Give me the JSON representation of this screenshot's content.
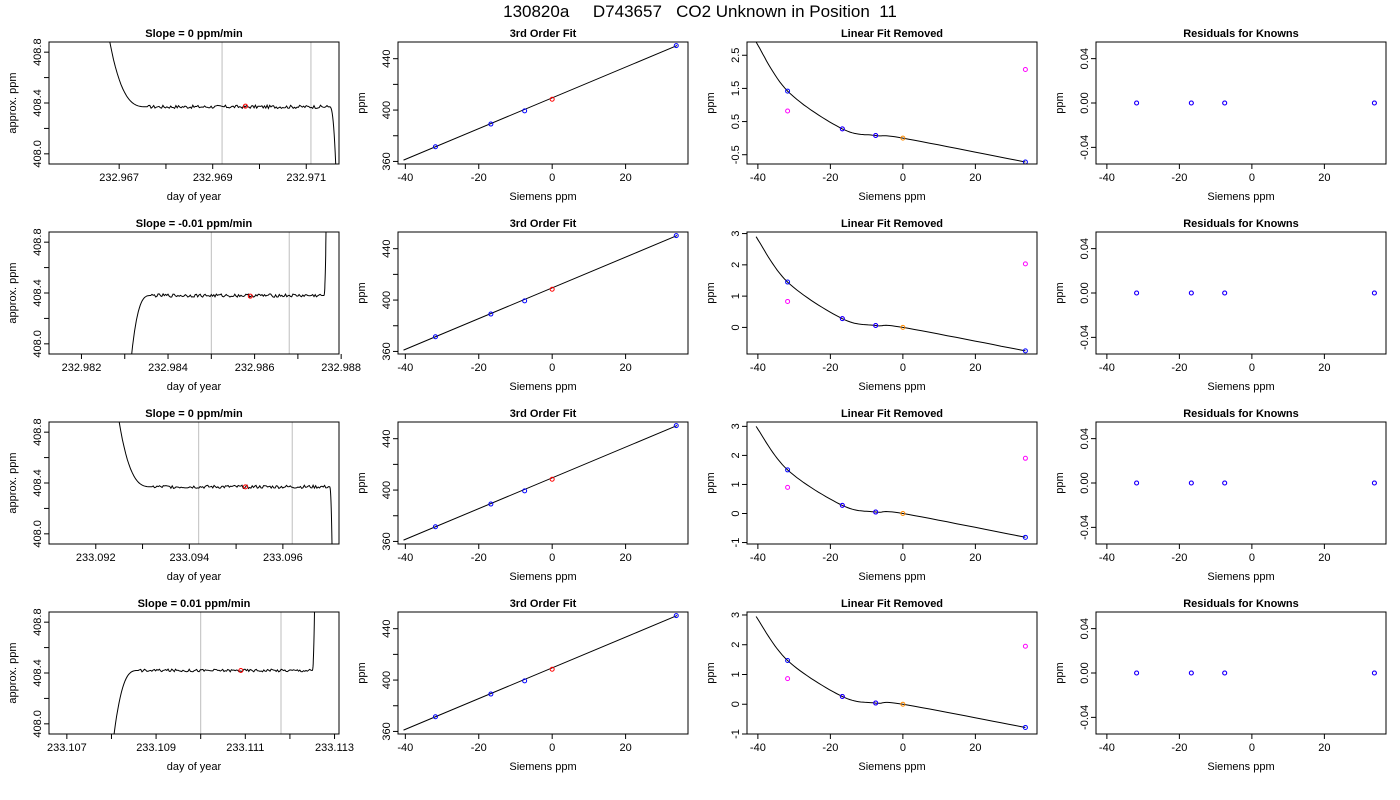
{
  "page_title": "130820a     D743657   CO2 Unknown in Position  11",
  "colors": {
    "axis": "#000000",
    "trace": "#000000",
    "vline": "#bebebe",
    "red": "#ff0000",
    "blue": "#0000ff",
    "magenta": "#ff00ff",
    "orange": "#ff8c00"
  },
  "chart_data": [
    {
      "type": "line",
      "row": 0,
      "col": 0,
      "title": "Slope =  0  ppm/min",
      "xlabel": "day of year",
      "ylabel": "approx. ppm",
      "xlim": [
        232.9655,
        232.9717
      ],
      "ylim": [
        407.92,
        408.88
      ],
      "xticks": [
        232.967,
        232.968,
        232.969,
        232.97,
        232.971
      ],
      "xticklabels": [
        "232.967",
        "",
        "232.969",
        "",
        "232.971"
      ],
      "yticks": [
        408.0,
        408.2,
        408.4,
        408.6,
        408.8
      ],
      "yticklabels": [
        "408.0",
        "",
        "408.4",
        "",
        "408.8"
      ],
      "vlines": [
        232.9692,
        232.9711
      ],
      "trace_level": 408.37,
      "trace_noise": 0.013,
      "trace_start": [
        232.9668,
        408.88
      ],
      "flat_start": 232.9676,
      "flat_end": 232.9715,
      "trace_end": [
        232.97163,
        407.92
      ],
      "red_point": [
        232.9697,
        408.375
      ]
    },
    {
      "type": "scatter",
      "row": 0,
      "col": 1,
      "title": "3rd Order Fit",
      "xlabel": "Siemens ppm",
      "ylabel": "ppm",
      "xlim": [
        -42,
        37
      ],
      "ylim": [
        358,
        453
      ],
      "xticks": [
        -40,
        -20,
        0,
        20
      ],
      "xticklabels": [
        "-40",
        "-20",
        "0",
        "20"
      ],
      "yticks": [
        360,
        380,
        400,
        420,
        440
      ],
      "yticklabels": [
        "360",
        "",
        "400",
        "",
        "440"
      ],
      "fit_line": [
        [
          -40.5,
          361.0
        ],
        [
          34.0,
          450.2
        ]
      ],
      "blue_points": [
        [
          -31.8,
          371.4
        ],
        [
          -16.7,
          389.1
        ],
        [
          -7.5,
          399.4
        ],
        [
          33.8,
          450.2
        ]
      ],
      "red_points": [
        [
          0,
          408.4
        ]
      ]
    },
    {
      "type": "scatter",
      "row": 0,
      "col": 2,
      "title": "Linear Fit Removed",
      "xlabel": "Siemens ppm",
      "ylabel": "ppm",
      "xlim": [
        -43,
        37
      ],
      "ylim": [
        -0.78,
        2.9
      ],
      "xticks": [
        -40,
        -20,
        0,
        20
      ],
      "xticklabels": [
        "-40",
        "-20",
        "0",
        "20"
      ],
      "yticks": [
        -0.5,
        0.5,
        1.5,
        2.5
      ],
      "yticklabels": [
        "-0.5",
        "0.5",
        "1.5",
        "2.5"
      ],
      "curve_points": [
        [
          -40.5,
          2.9
        ],
        [
          -31.8,
          1.42
        ],
        [
          -16.7,
          0.28
        ],
        [
          -7.5,
          0.08
        ],
        [
          0,
          0.0
        ],
        [
          33.8,
          -0.72
        ]
      ],
      "blue_points": [
        [
          -31.8,
          1.42
        ],
        [
          -16.7,
          0.28
        ],
        [
          -7.5,
          0.08
        ],
        [
          33.8,
          -0.72
        ]
      ],
      "magenta_points": [
        [
          -31.8,
          0.82
        ],
        [
          -16.7,
          0.28
        ],
        [
          -7.5,
          0.08
        ],
        [
          33.8,
          2.07
        ]
      ],
      "orange_points": [
        [
          0,
          0.0
        ]
      ]
    },
    {
      "type": "scatter",
      "row": 0,
      "col": 3,
      "title": "Residuals for Knowns",
      "xlabel": "Siemens ppm",
      "ylabel": "ppm",
      "xlim": [
        -43,
        37
      ],
      "ylim": [
        -0.055,
        0.055
      ],
      "xticks": [
        -40,
        -20,
        0,
        20
      ],
      "xticklabels": [
        "-40",
        "-20",
        "0",
        "20"
      ],
      "yticks": [
        -0.04,
        0.0,
        0.04
      ],
      "yticklabels": [
        "-0.04",
        "0.00",
        "0.04"
      ],
      "blue_points": [
        [
          -31.8,
          0
        ],
        [
          -16.7,
          0
        ],
        [
          -7.5,
          0
        ],
        [
          33.8,
          0
        ]
      ],
      "magenta_points": [
        [
          -31.8,
          0
        ],
        [
          -16.7,
          0
        ],
        [
          -7.5,
          0
        ],
        [
          33.8,
          0
        ]
      ]
    },
    {
      "type": "line",
      "row": 1,
      "col": 0,
      "title": "Slope =  -0.01  ppm/min",
      "xlabel": "day of year",
      "ylabel": "approx. ppm",
      "xlim": [
        232.98125,
        232.98795
      ],
      "ylim": [
        407.92,
        408.88
      ],
      "xticks": [
        232.982,
        232.983,
        232.984,
        232.985,
        232.986,
        232.987,
        232.988
      ],
      "xticklabels": [
        "232.982",
        "",
        "232.984",
        "",
        "232.986",
        "",
        "232.988"
      ],
      "yticks": [
        408.0,
        408.2,
        408.4,
        408.6,
        408.8
      ],
      "yticklabels": [
        "408.0",
        "",
        "408.4",
        "",
        "408.8"
      ],
      "vlines": [
        232.985,
        232.9868
      ],
      "trace_level": 408.38,
      "trace_noise": 0.013,
      "trace_start": [
        232.98316,
        407.92
      ],
      "flat_start": 232.9836,
      "flat_end": 232.9876,
      "trace_end": [
        232.98765,
        408.88
      ],
      "red_point": [
        232.9859,
        408.375
      ]
    },
    {
      "type": "scatter",
      "row": 1,
      "col": 1,
      "title": "3rd Order Fit",
      "xlabel": "Siemens ppm",
      "ylabel": "ppm",
      "xlim": [
        -42,
        37
      ],
      "ylim": [
        358,
        453
      ],
      "xticks": [
        -40,
        -20,
        0,
        20
      ],
      "xticklabels": [
        "-40",
        "-20",
        "0",
        "20"
      ],
      "yticks": [
        360,
        380,
        400,
        420,
        440
      ],
      "yticklabels": [
        "360",
        "",
        "400",
        "",
        "440"
      ],
      "fit_line": [
        [
          -40.5,
          361.0
        ],
        [
          34.0,
          450.2
        ]
      ],
      "blue_points": [
        [
          -31.8,
          371.4
        ],
        [
          -16.7,
          389.1
        ],
        [
          -7.5,
          399.4
        ],
        [
          33.8,
          450.2
        ]
      ],
      "red_points": [
        [
          0,
          408.4
        ]
      ]
    },
    {
      "type": "scatter",
      "row": 1,
      "col": 2,
      "title": "Linear Fit Removed",
      "xlabel": "Siemens ppm",
      "ylabel": "ppm",
      "xlim": [
        -43,
        37
      ],
      "ylim": [
        -0.85,
        3.05
      ],
      "xticks": [
        -40,
        -20,
        0,
        20
      ],
      "xticklabels": [
        "-40",
        "-20",
        "0",
        "20"
      ],
      "yticks": [
        0,
        1,
        2,
        3
      ],
      "yticklabels": [
        "0",
        "1",
        "2",
        "3"
      ],
      "curve_points": [
        [
          -40.5,
          2.9
        ],
        [
          -31.8,
          1.45
        ],
        [
          -16.7,
          0.28
        ],
        [
          -7.5,
          0.06
        ],
        [
          0,
          0.0
        ],
        [
          33.8,
          -0.75
        ]
      ],
      "blue_points": [
        [
          -31.8,
          1.45
        ],
        [
          -16.7,
          0.28
        ],
        [
          -7.5,
          0.06
        ],
        [
          33.8,
          -0.75
        ]
      ],
      "magenta_points": [
        [
          -31.8,
          0.83
        ],
        [
          -16.7,
          0.28
        ],
        [
          -7.5,
          0.06
        ],
        [
          33.8,
          2.03
        ]
      ],
      "orange_points": [
        [
          0,
          0.0
        ]
      ]
    },
    {
      "type": "scatter",
      "row": 1,
      "col": 3,
      "title": "Residuals for Knowns",
      "xlabel": "Siemens ppm",
      "ylabel": "ppm",
      "xlim": [
        -43,
        37
      ],
      "ylim": [
        -0.055,
        0.055
      ],
      "xticks": [
        -40,
        -20,
        0,
        20
      ],
      "xticklabels": [
        "-40",
        "-20",
        "0",
        "20"
      ],
      "yticks": [
        -0.04,
        0.0,
        0.04
      ],
      "yticklabels": [
        "-0.04",
        "0.00",
        "0.04"
      ],
      "blue_points": [
        [
          -31.8,
          0
        ],
        [
          -16.7,
          0
        ],
        [
          -7.5,
          0
        ],
        [
          33.8,
          0
        ]
      ],
      "magenta_points": [
        [
          -31.8,
          0
        ],
        [
          -16.7,
          0
        ],
        [
          -7.5,
          0
        ],
        [
          33.8,
          0
        ]
      ]
    },
    {
      "type": "line",
      "row": 2,
      "col": 0,
      "title": "Slope =  0  ppm/min",
      "xlabel": "day of year",
      "ylabel": "approx. ppm",
      "xlim": [
        233.091,
        233.0972
      ],
      "ylim": [
        407.92,
        408.88
      ],
      "xticks": [
        233.092,
        233.093,
        233.094,
        233.095,
        233.096
      ],
      "xticklabels": [
        "233.092",
        "",
        "233.094",
        "",
        "233.096"
      ],
      "yticks": [
        408.0,
        408.2,
        408.4,
        408.6,
        408.8
      ],
      "yticklabels": [
        "408.0",
        "",
        "408.4",
        "",
        "408.8"
      ],
      "vlines": [
        233.0942,
        233.0962
      ],
      "trace_level": 408.37,
      "trace_noise": 0.013,
      "trace_start": [
        233.0925,
        408.88
      ],
      "flat_start": 233.0932,
      "flat_end": 233.097,
      "trace_end": [
        233.09705,
        407.92
      ],
      "red_point": [
        233.0952,
        408.37
      ]
    },
    {
      "type": "scatter",
      "row": 2,
      "col": 1,
      "title": "3rd Order Fit",
      "xlabel": "Siemens ppm",
      "ylabel": "ppm",
      "xlim": [
        -42,
        37
      ],
      "ylim": [
        358,
        453
      ],
      "xticks": [
        -40,
        -20,
        0,
        20
      ],
      "xticklabels": [
        "-40",
        "-20",
        "0",
        "20"
      ],
      "yticks": [
        360,
        380,
        400,
        420,
        440
      ],
      "yticklabels": [
        "360",
        "",
        "400",
        "",
        "440"
      ],
      "fit_line": [
        [
          -40.5,
          361.0
        ],
        [
          34.0,
          450.2
        ]
      ],
      "blue_points": [
        [
          -31.8,
          371.4
        ],
        [
          -16.7,
          389.1
        ],
        [
          -7.5,
          399.4
        ],
        [
          33.8,
          450.2
        ]
      ],
      "red_points": [
        [
          0,
          408.4
        ]
      ]
    },
    {
      "type": "scatter",
      "row": 2,
      "col": 2,
      "title": "Linear Fit Removed",
      "xlabel": "Siemens ppm",
      "ylabel": "ppm",
      "xlim": [
        -43,
        37
      ],
      "ylim": [
        -1.05,
        3.15
      ],
      "xticks": [
        -40,
        -20,
        0,
        20
      ],
      "xticklabels": [
        "-40",
        "-20",
        "0",
        "20"
      ],
      "yticks": [
        -1,
        0,
        1,
        2,
        3
      ],
      "yticklabels": [
        "-1",
        "0",
        "1",
        "2",
        "3"
      ],
      "curve_points": [
        [
          -40.5,
          3.0
        ],
        [
          -31.8,
          1.5
        ],
        [
          -16.7,
          0.28
        ],
        [
          -7.5,
          0.05
        ],
        [
          0,
          0.0
        ],
        [
          33.8,
          -0.82
        ]
      ],
      "blue_points": [
        [
          -31.8,
          1.5
        ],
        [
          -16.7,
          0.28
        ],
        [
          -7.5,
          0.05
        ],
        [
          33.8,
          -0.82
        ]
      ],
      "magenta_points": [
        [
          -31.8,
          0.9
        ],
        [
          -16.7,
          0.28
        ],
        [
          -7.5,
          0.05
        ],
        [
          33.8,
          1.9
        ]
      ],
      "orange_points": [
        [
          0,
          0.0
        ]
      ]
    },
    {
      "type": "scatter",
      "row": 2,
      "col": 3,
      "title": "Residuals for Knowns",
      "xlabel": "Siemens ppm",
      "ylabel": "ppm",
      "xlim": [
        -43,
        37
      ],
      "ylim": [
        -0.055,
        0.055
      ],
      "xticks": [
        -40,
        -20,
        0,
        20
      ],
      "xticklabels": [
        "-40",
        "-20",
        "0",
        "20"
      ],
      "yticks": [
        -0.04,
        0.0,
        0.04
      ],
      "yticklabels": [
        "-0.04",
        "0.00",
        "0.04"
      ],
      "blue_points": [
        [
          -31.8,
          0
        ],
        [
          -16.7,
          0
        ],
        [
          -7.5,
          0
        ],
        [
          33.8,
          0
        ]
      ],
      "magenta_points": [
        [
          -31.8,
          0
        ],
        [
          -16.7,
          0
        ],
        [
          -7.5,
          0
        ],
        [
          33.8,
          0
        ]
      ]
    },
    {
      "type": "line",
      "row": 3,
      "col": 0,
      "title": "Slope =  0.01  ppm/min",
      "xlabel": "day of year",
      "ylabel": "approx. ppm",
      "xlim": [
        233.1066,
        233.1131
      ],
      "ylim": [
        407.92,
        408.88
      ],
      "xticks": [
        233.107,
        233.108,
        233.109,
        233.11,
        233.111,
        233.112,
        233.113
      ],
      "xticklabels": [
        "233.107",
        "",
        "233.109",
        "",
        "233.111",
        "",
        "233.113"
      ],
      "yticks": [
        408.0,
        408.2,
        408.4,
        408.6,
        408.8
      ],
      "yticklabels": [
        "408.0",
        "",
        "408.4",
        "",
        "408.8"
      ],
      "vlines": [
        233.11,
        233.1118
      ],
      "trace_level": 408.42,
      "trace_noise": 0.011,
      "trace_start": [
        233.10806,
        407.92
      ],
      "flat_start": 233.1086,
      "flat_end": 233.1125,
      "trace_end": [
        233.11255,
        408.88
      ],
      "red_point": [
        233.1109,
        408.42
      ]
    },
    {
      "type": "scatter",
      "row": 3,
      "col": 1,
      "title": "3rd Order Fit",
      "xlabel": "Siemens ppm",
      "ylabel": "ppm",
      "xlim": [
        -42,
        37
      ],
      "ylim": [
        358,
        453
      ],
      "xticks": [
        -40,
        -20,
        0,
        20
      ],
      "xticklabels": [
        "-40",
        "-20",
        "0",
        "20"
      ],
      "yticks": [
        360,
        380,
        400,
        420,
        440
      ],
      "yticklabels": [
        "360",
        "",
        "400",
        "",
        "440"
      ],
      "fit_line": [
        [
          -40.5,
          361.0
        ],
        [
          34.0,
          450.2
        ]
      ],
      "blue_points": [
        [
          -31.8,
          371.4
        ],
        [
          -16.7,
          389.1
        ],
        [
          -7.5,
          399.4
        ],
        [
          33.8,
          450.2
        ]
      ],
      "red_points": [
        [
          0,
          408.4
        ]
      ]
    },
    {
      "type": "scatter",
      "row": 3,
      "col": 2,
      "title": "Linear Fit Removed",
      "xlabel": "Siemens ppm",
      "ylabel": "ppm",
      "xlim": [
        -43,
        37
      ],
      "ylim": [
        -1.0,
        3.1
      ],
      "xticks": [
        -40,
        -20,
        0,
        20
      ],
      "xticklabels": [
        "-40",
        "-20",
        "0",
        "20"
      ],
      "yticks": [
        -1,
        0,
        1,
        2,
        3
      ],
      "yticklabels": [
        "-1",
        "0",
        "1",
        "2",
        "3"
      ],
      "curve_points": [
        [
          -40.5,
          2.95
        ],
        [
          -31.8,
          1.47
        ],
        [
          -16.7,
          0.26
        ],
        [
          -7.5,
          0.04
        ],
        [
          0,
          0.0
        ],
        [
          33.8,
          -0.78
        ]
      ],
      "blue_points": [
        [
          -31.8,
          1.47
        ],
        [
          -16.7,
          0.26
        ],
        [
          -7.5,
          0.04
        ],
        [
          33.8,
          -0.78
        ]
      ],
      "magenta_points": [
        [
          -31.8,
          0.86
        ],
        [
          -16.7,
          0.26
        ],
        [
          -7.5,
          0.04
        ],
        [
          33.8,
          1.95
        ]
      ],
      "orange_points": [
        [
          0,
          0.0
        ]
      ]
    },
    {
      "type": "scatter",
      "row": 3,
      "col": 3,
      "title": "Residuals for Knowns",
      "xlabel": "Siemens ppm",
      "ylabel": "ppm",
      "xlim": [
        -43,
        37
      ],
      "ylim": [
        -0.055,
        0.055
      ],
      "xticks": [
        -40,
        -20,
        0,
        20
      ],
      "xticklabels": [
        "-40",
        "-20",
        "0",
        "20"
      ],
      "yticks": [
        -0.04,
        0.0,
        0.04
      ],
      "yticklabels": [
        "-0.04",
        "0.00",
        "0.04"
      ],
      "blue_points": [
        [
          -31.8,
          0
        ],
        [
          -16.7,
          0
        ],
        [
          -7.5,
          0
        ],
        [
          33.8,
          0
        ]
      ],
      "magenta_points": [
        [
          -31.8,
          0
        ],
        [
          -16.7,
          0
        ],
        [
          -7.5,
          0
        ],
        [
          33.8,
          0
        ]
      ]
    }
  ]
}
